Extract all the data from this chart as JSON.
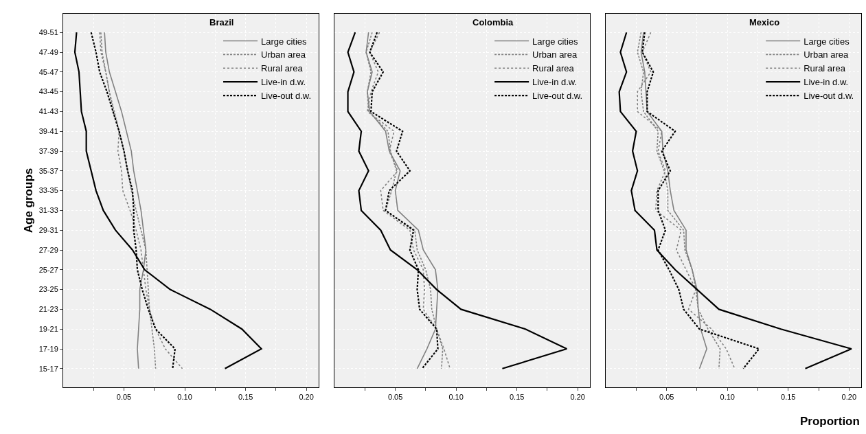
{
  "chart_data": [
    {
      "type": "line",
      "title": "Brazil",
      "ylabel": "Age groups",
      "orientation": "horizontal",
      "legend": "top right",
      "grid": true,
      "categories": [
        "49-51",
        "47-49",
        "45-47",
        "43-45",
        "41-43",
        "39-41",
        "37-39",
        "35-37",
        "33-35",
        "31-33",
        "29-31",
        "27-29",
        "25-27",
        "23-25",
        "21-23",
        "19-21",
        "17-19",
        "15-17"
      ],
      "xlim": [
        0,
        0.21
      ],
      "xticks": [
        {
          "value": 0.025,
          "label": null
        },
        {
          "value": 0.05,
          "label": "0.05"
        },
        {
          "value": 0.075,
          "label": null
        },
        {
          "value": 0.1,
          "label": "0.10"
        },
        {
          "value": 0.125,
          "label": null
        },
        {
          "value": 0.15,
          "label": "0.15"
        },
        {
          "value": 0.175,
          "label": null
        },
        {
          "value": 0.2,
          "label": "0.20"
        }
      ],
      "series": [
        {
          "name": "Large cities",
          "color": "#808080",
          "line_style": "solid",
          "values": [
            0.034,
            0.035,
            0.038,
            0.043,
            0.048,
            0.052,
            0.056,
            0.058,
            0.061,
            0.064,
            0.066,
            0.068,
            0.066,
            0.063,
            0.063,
            0.062,
            0.061,
            0.062
          ]
        },
        {
          "name": "Urban area",
          "color": "#808080",
          "line_style": "dashed",
          "values": [
            0.031,
            0.032,
            0.035,
            0.038,
            0.042,
            0.046,
            0.05,
            0.053,
            0.056,
            0.06,
            0.064,
            0.068,
            0.069,
            0.07,
            0.071,
            0.073,
            0.075,
            0.076
          ]
        },
        {
          "name": "Rural area",
          "color": "#808080",
          "line_style": "dotted",
          "values": [
            0.03,
            0.031,
            0.035,
            0.038,
            0.041,
            0.046,
            0.045,
            0.048,
            0.049,
            0.055,
            0.06,
            0.064,
            0.066,
            0.068,
            0.071,
            0.076,
            0.084,
            0.098
          ]
        },
        {
          "name": "Live-in d.w.",
          "color": "#000000",
          "line_style": "solid",
          "values": [
            0.011,
            0.0096,
            0.013,
            0.014,
            0.015,
            0.019,
            0.019,
            0.023,
            0.027,
            0.033,
            0.043,
            0.057,
            0.067,
            0.088,
            0.121,
            0.147,
            0.163,
            0.133
          ]
        },
        {
          "name": "Live-out d.w.",
          "color": "#000000",
          "line_style": "dashed",
          "values": [
            0.023,
            0.027,
            0.03,
            0.036,
            0.041,
            0.046,
            0.05,
            0.053,
            0.057,
            0.058,
            0.058,
            0.06,
            0.061,
            0.065,
            0.07,
            0.076,
            0.092,
            0.09
          ]
        }
      ]
    },
    {
      "type": "line",
      "title": "Colombia",
      "orientation": "horizontal",
      "legend": "top right",
      "grid": true,
      "tick_labels": "x",
      "categories": [
        "49-51",
        "47-49",
        "45-47",
        "43-45",
        "41-43",
        "39-41",
        "37-39",
        "35-37",
        "33-35",
        "31-33",
        "29-31",
        "27-29",
        "25-27",
        "23-25",
        "21-23",
        "19-21",
        "17-19",
        "15-17"
      ],
      "xlim": [
        0,
        0.21
      ],
      "xticks": [
        {
          "value": 0.025,
          "label": null
        },
        {
          "value": 0.05,
          "label": "0.05"
        },
        {
          "value": 0.075,
          "label": null
        },
        {
          "value": 0.1,
          "label": "0.10"
        },
        {
          "value": 0.125,
          "label": null
        },
        {
          "value": 0.15,
          "label": "0.15"
        },
        {
          "value": 0.175,
          "label": null
        },
        {
          "value": 0.2,
          "label": "0.20"
        }
      ],
      "series": [
        {
          "name": "Large cities",
          "color": "#808080",
          "line_style": "solid",
          "values": [
            0.028,
            0.026,
            0.031,
            0.027,
            0.029,
            0.042,
            0.045,
            0.054,
            0.05,
            0.052,
            0.069,
            0.073,
            0.083,
            0.085,
            0.084,
            0.083,
            0.076,
            0.068
          ]
        },
        {
          "name": "Urban area",
          "color": "#808080",
          "line_style": "dashed",
          "values": [
            0.031,
            0.026,
            0.03,
            0.027,
            0.028,
            0.044,
            0.046,
            0.051,
            0.047,
            0.042,
            0.066,
            0.068,
            0.075,
            0.079,
            0.08,
            0.084,
            0.089,
            0.088
          ]
        },
        {
          "name": "Rural area",
          "color": "#808080",
          "line_style": "dotted",
          "values": [
            0.037,
            0.029,
            0.036,
            0.03,
            0.027,
            0.049,
            0.045,
            0.052,
            0.038,
            0.04,
            0.062,
            0.065,
            0.073,
            0.074,
            0.073,
            0.084,
            0.09,
            0.095
          ]
        },
        {
          "name": "Live-in d.w.",
          "color": "#000000",
          "line_style": "solid",
          "values": [
            0.017,
            0.011,
            0.016,
            0.011,
            0.011,
            0.022,
            0.02,
            0.028,
            0.02,
            0.022,
            0.038,
            0.046,
            0.068,
            0.084,
            0.104,
            0.157,
            0.191,
            0.138
          ]
        },
        {
          "name": "Live-out d.w.",
          "color": "#000000",
          "line_style": "dashed",
          "values": [
            0.035,
            0.029,
            0.04,
            0.031,
            0.03,
            0.056,
            0.051,
            0.062,
            0.045,
            0.042,
            0.065,
            0.062,
            0.069,
            0.068,
            0.07,
            0.084,
            0.085,
            0.072
          ]
        }
      ]
    },
    {
      "type": "line",
      "title": "Mexico",
      "xlabel": "Proportion",
      "orientation": "horizontal",
      "legend": "top right",
      "grid": true,
      "tick_labels": "x",
      "categories": [
        "49-51",
        "47-49",
        "45-47",
        "43-45",
        "41-43",
        "39-41",
        "37-39",
        "35-37",
        "33-35",
        "31-33",
        "29-31",
        "27-29",
        "25-27",
        "23-25",
        "21-23",
        "19-21",
        "17-19",
        "15-17"
      ],
      "xlim": [
        0,
        0.21
      ],
      "xticks": [
        {
          "value": 0.025,
          "label": null
        },
        {
          "value": 0.05,
          "label": "0.05"
        },
        {
          "value": 0.075,
          "label": null
        },
        {
          "value": 0.1,
          "label": "0.10"
        },
        {
          "value": 0.125,
          "label": null
        },
        {
          "value": 0.15,
          "label": "0.15"
        },
        {
          "value": 0.175,
          "label": null
        },
        {
          "value": 0.2,
          "label": "0.20"
        }
      ],
      "series": [
        {
          "name": "Large cities",
          "color": "#808080",
          "line_style": "solid",
          "values": [
            0.031,
            0.029,
            0.032,
            0.033,
            0.034,
            0.046,
            0.047,
            0.051,
            0.053,
            0.056,
            0.066,
            0.066,
            0.071,
            0.075,
            0.076,
            0.078,
            0.083,
            0.077
          ]
        },
        {
          "name": "Urban area",
          "color": "#808080",
          "line_style": "dashed",
          "values": [
            0.029,
            0.026,
            0.031,
            0.029,
            0.031,
            0.043,
            0.042,
            0.048,
            0.051,
            0.051,
            0.064,
            0.065,
            0.071,
            0.074,
            0.076,
            0.084,
            0.094,
            0.093
          ]
        },
        {
          "name": "Rural area",
          "color": "#808080",
          "line_style": "dotted",
          "values": [
            0.037,
            0.03,
            0.037,
            0.026,
            0.026,
            0.046,
            0.043,
            0.049,
            0.042,
            0.041,
            0.062,
            0.058,
            0.066,
            0.074,
            0.068,
            0.087,
            0.099,
            0.106
          ]
        },
        {
          "name": "Live-in d.w.",
          "color": "#000000",
          "line_style": "solid",
          "values": [
            0.017,
            0.012,
            0.017,
            0.011,
            0.012,
            0.025,
            0.022,
            0.026,
            0.021,
            0.024,
            0.04,
            0.042,
            0.057,
            0.075,
            0.093,
            0.144,
            0.202,
            0.164
          ]
        },
        {
          "name": "Live-out d.w.",
          "color": "#000000",
          "line_style": "dashed",
          "values": [
            0.032,
            0.03,
            0.039,
            0.034,
            0.034,
            0.057,
            0.046,
            0.053,
            0.043,
            0.043,
            0.049,
            0.043,
            0.052,
            0.06,
            0.064,
            0.077,
            0.126,
            0.113
          ]
        }
      ]
    }
  ]
}
